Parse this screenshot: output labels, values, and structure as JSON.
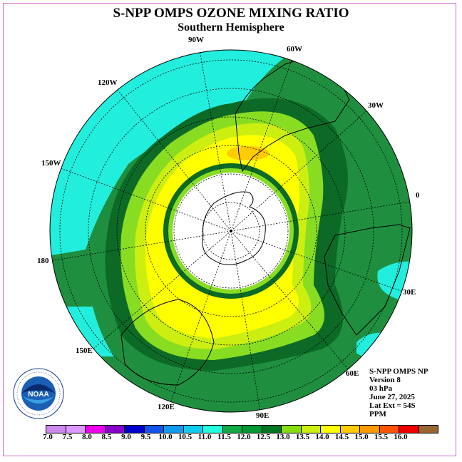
{
  "title": "S-NPP OMPS OZONE MIXING RATIO",
  "subtitle": "Southern Hemisphere",
  "longitude_labels": [
    "90W",
    "60W",
    "30W",
    "0",
    "30E",
    "60E",
    "90E",
    "120E",
    "150E",
    "180",
    "150W",
    "120W"
  ],
  "info": {
    "line1": "S-NPP OMPS NP",
    "line2": "Version 8",
    "line3": "03 hPa",
    "line4": "June 27, 2025",
    "line5": "Lat Ext = 54S",
    "line6": "PPM"
  },
  "logo": {
    "name": "noaa-logo",
    "text": "NOAA",
    "ring_text": "NATIONAL OCEANIC AND ATMOSPHERIC ADMINISTRATION · U.S. DEPARTMENT OF COMMERCE"
  },
  "colorbar": {
    "labels": [
      "7.0",
      "7.5",
      "8.0",
      "8.5",
      "9.0",
      "9.5",
      "10.0",
      "10.5",
      "11.0",
      "11.5",
      "12.0",
      "12.5",
      "13.0",
      "13.5",
      "14.0",
      "14.5",
      "15.0",
      "15.5",
      "16.0"
    ],
    "colors": [
      "#cc88ee",
      "#dd99ff",
      "#ee00ee",
      "#8800cc",
      "#0000cc",
      "#1155ee",
      "#1199ee",
      "#11ccee",
      "#22ffdd",
      "#11aa44",
      "#009933",
      "#007722",
      "#88dd11",
      "#ccee11",
      "#ffff00",
      "#ffcc00",
      "#ff9900",
      "#ff5500",
      "#ee0000",
      "#996633"
    ]
  },
  "map_colors": {
    "outer_cyan": "#22eedd",
    "dark_green": "#1f8f3f",
    "mid_green": "#0c6a26",
    "light_green": "#88dd22",
    "yellow_green": "#ccee11",
    "yellow": "#ffff00",
    "orange": "#ffcc00",
    "polar_night": "#ffffff"
  }
}
